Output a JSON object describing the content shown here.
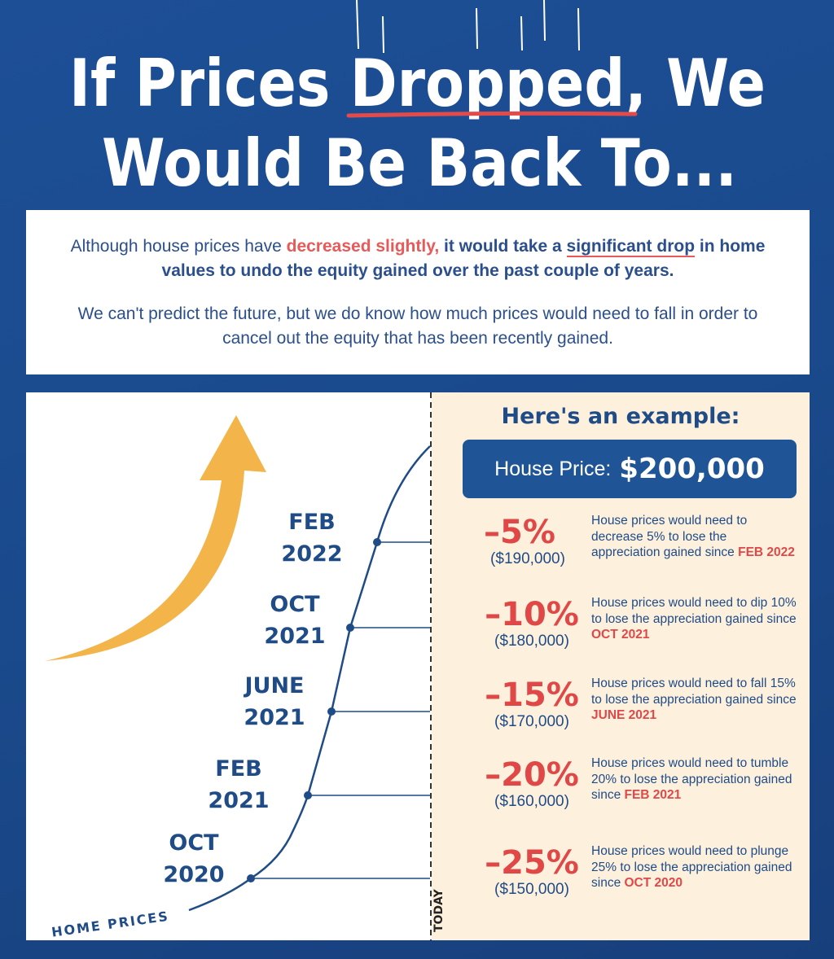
{
  "header": {
    "title_lines": [
      "If Prices Dropped, We",
      "Would Be Back To..."
    ]
  },
  "intro": {
    "paragraph1": [
      "Although house prices have ",
      "decreased slightly,",
      " it would take a ",
      "significant drop",
      " in home values to undo the equity gained over the past couple of years."
    ],
    "paragraph2": "We can't predict the future, but we do know how much prices would need to fall in order to cancel out the equity that has been recently gained."
  },
  "timeline": {
    "axis_label": "HOME PRICES",
    "today_label": "TODAY",
    "points": [
      {
        "lines": [
          "FEB",
          "2022"
        ]
      },
      {
        "lines": [
          "OCT",
          "2021"
        ]
      },
      {
        "lines": [
          "JUNE",
          "2021"
        ]
      },
      {
        "lines": [
          "FEB",
          "2021"
        ]
      },
      {
        "lines": [
          "OCT",
          "2020"
        ]
      }
    ]
  },
  "example": {
    "heading": "Here's an example:",
    "price_label": "House Price:",
    "price_value": "$200,000",
    "rows": [
      {
        "change": "–5%",
        "price": "($190,000)",
        "text": "House prices would need to decrease 5% to lose the appreciation gained since",
        "date": "FEB 2022"
      },
      {
        "change": "–10%",
        "price": "($180,000)",
        "text": "House prices would need to dip 10% to lose the appreciation gained since",
        "date": "OCT 2021"
      },
      {
        "change": "–15%",
        "price": "($170,000)",
        "text": "House prices would need to fall 15% to lose the appreciation gained since",
        "date": "JUNE 2021"
      },
      {
        "change": "–20%",
        "price": "($160,000)",
        "text": "House prices would need to tumble 20% to lose the appreciation gained since",
        "date": "FEB 2021"
      },
      {
        "change": "–25%",
        "price": "($150,000)",
        "text": "House prices would need to plunge 25% to lose the appreciation gained since",
        "date": "OCT 2020"
      }
    ]
  }
}
